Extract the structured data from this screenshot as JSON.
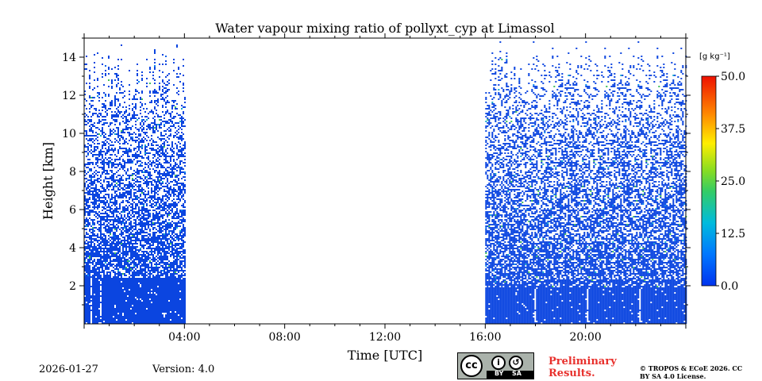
{
  "chart_data": {
    "type": "heatmap",
    "title": "Water vapour mixing ratio of pollyxt_cyp at Limassol",
    "xlabel": "Time [UTC]",
    "ylabel": "Height [km]",
    "xlim_hours": [
      0,
      24
    ],
    "ylim_km": [
      0,
      15
    ],
    "x_ticks": [
      {
        "value": 4,
        "label": "04:00"
      },
      {
        "value": 8,
        "label": "08:00"
      },
      {
        "value": 12,
        "label": "12:00"
      },
      {
        "value": 16,
        "label": "16:00"
      },
      {
        "value": 20,
        "label": "20:00"
      }
    ],
    "y_ticks": [
      {
        "value": 2,
        "label": "2"
      },
      {
        "value": 4,
        "label": "4"
      },
      {
        "value": 6,
        "label": "6"
      },
      {
        "value": 8,
        "label": "8"
      },
      {
        "value": 10,
        "label": "10"
      },
      {
        "value": 12,
        "label": "12"
      },
      {
        "value": 14,
        "label": "14"
      }
    ],
    "colorbar": {
      "unit_label": "[g kg⁻¹]",
      "min": 0.0,
      "max": 50.0,
      "ticks": [
        "0.0",
        "12.5",
        "25.0",
        "37.5",
        "50.0"
      ],
      "colormap": "jet"
    },
    "data_coverage": [
      {
        "start_hour": 0.0,
        "end_hour": 4.0,
        "dense_below_km": 2.5,
        "max_height_km": 15
      },
      {
        "start_hour": 16.0,
        "end_hour": 24.0,
        "dense_below_km": 2.0,
        "max_height_km": 15
      }
    ],
    "typical_value_near_surface": 1.0,
    "typical_value_aloft": 0.5
  },
  "footer": {
    "date": "2026-01-27",
    "version": "Version: 4.0",
    "license_badge": {
      "cc": "cc",
      "by": "BY",
      "sa": "SA"
    },
    "preliminary": "Preliminary Results.",
    "copyright": "© TROPOS & ECoE 2026. CC BY SA 4.0 License."
  }
}
